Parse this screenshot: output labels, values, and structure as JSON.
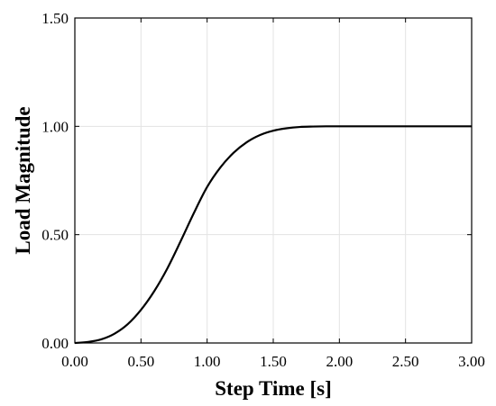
{
  "chart_data": {
    "type": "line",
    "title": "",
    "xlabel": "Step Time [s]",
    "ylabel": "Load Magnitude",
    "xlim": [
      0,
      3
    ],
    "ylim": [
      0,
      1.5
    ],
    "xticks": [
      0,
      0.5,
      1,
      1.5,
      2,
      2.5,
      3
    ],
    "xtick_labels": [
      "0.00",
      "0.50",
      "1.00",
      "1.50",
      "2.00",
      "2.50",
      "3.00"
    ],
    "yticks": [
      0,
      0.5,
      1,
      1.5
    ],
    "ytick_labels": [
      "0.00",
      "0.50",
      "1.00",
      "1.50"
    ],
    "grid": true,
    "legend": false,
    "series": [
      {
        "color": "#000000",
        "x": [
          0,
          0.1,
          0.2,
          0.3,
          0.4,
          0.5,
          0.6,
          0.7,
          0.8,
          0.9,
          1.0,
          1.1,
          1.2,
          1.3,
          1.4,
          1.5,
          1.6,
          1.7,
          1.8,
          1.9,
          2.0,
          2.5,
          3.0
        ],
        "y": [
          0,
          0.005,
          0.017,
          0.043,
          0.087,
          0.153,
          0.239,
          0.345,
          0.47,
          0.6,
          0.72,
          0.81,
          0.878,
          0.927,
          0.96,
          0.98,
          0.991,
          0.997,
          0.999,
          1.0,
          1.0,
          1.0,
          1.0
        ]
      }
    ]
  }
}
